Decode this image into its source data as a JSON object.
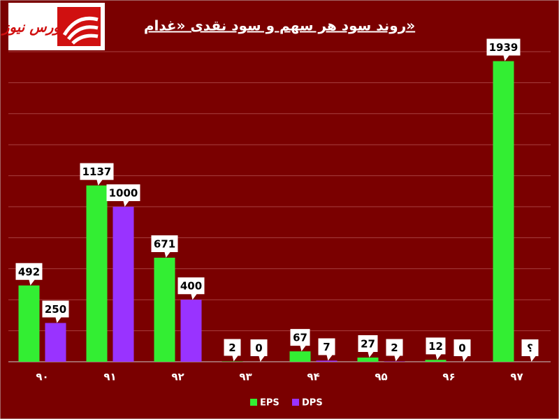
{
  "chart_data": {
    "type": "bar",
    "title": "روند سود هر سهم و سود نقدی «غدام»",
    "logo_text": "بورس نیوز",
    "categories": [
      "۹۰",
      "۹۱",
      "۹۲",
      "۹۳",
      "۹۴",
      "۹۵",
      "۹۶",
      "۹۷"
    ],
    "series": [
      {
        "name": "EPS",
        "color": "#33ee33",
        "values": [
          492,
          1137,
          671,
          2,
          67,
          27,
          12,
          1939
        ]
      },
      {
        "name": "DPS",
        "color": "#9933ff",
        "values": [
          250,
          1000,
          400,
          0,
          7,
          2,
          0,
          null
        ],
        "value_labels": [
          "250",
          "1000",
          "400",
          "0",
          "7",
          "2",
          "0",
          "؟"
        ]
      }
    ],
    "ylim": [
      0,
      2000
    ],
    "yticks": [
      0,
      200,
      400,
      600,
      800,
      1000,
      1200,
      1400,
      1600,
      1800,
      2000
    ],
    "grid": true,
    "legend": "bottom"
  }
}
